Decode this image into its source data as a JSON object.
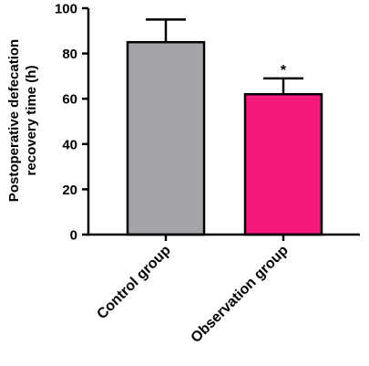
{
  "chart_data": {
    "type": "bar",
    "title": "",
    "xlabel": "",
    "ylabel_lines": [
      "Postoperative defecation",
      "recovery time (h)"
    ],
    "ylim": [
      0,
      100
    ],
    "yticks": [
      0,
      20,
      40,
      60,
      80,
      100
    ],
    "categories": [
      "Control group",
      "Observation group"
    ],
    "values": [
      85,
      62
    ],
    "error_upper": [
      95,
      69
    ],
    "colors": [
      "#a5a3aa",
      "#f31a7c"
    ],
    "annotations": [
      "",
      "*"
    ],
    "grid": false,
    "legend": "none"
  }
}
